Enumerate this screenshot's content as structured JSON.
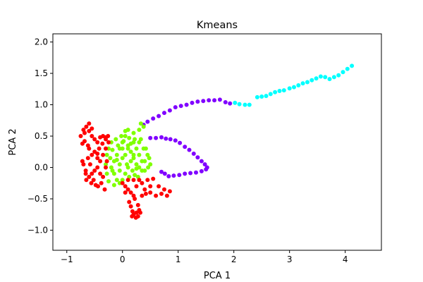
{
  "chart_data": {
    "type": "scatter",
    "title": "Kmeans",
    "xlabel": "PCA 1",
    "ylabel": "PCA 2",
    "xlim": [
      -1.25,
      4.65
    ],
    "ylim": [
      -1.32,
      2.13
    ],
    "xticks": [
      -1,
      0,
      1,
      2,
      3,
      4
    ],
    "yticks": [
      -1.0,
      -0.5,
      0.0,
      0.5,
      1.0,
      1.5,
      2.0
    ],
    "grid": false,
    "legend": "none",
    "series": [
      {
        "color": "#8000ff",
        "points": [
          [
            0.38,
            0.68
          ],
          [
            0.45,
            0.73
          ],
          [
            0.55,
            0.78
          ],
          [
            0.65,
            0.82
          ],
          [
            0.75,
            0.87
          ],
          [
            0.85,
            0.91
          ],
          [
            0.95,
            0.96
          ],
          [
            1.05,
            0.98
          ],
          [
            1.15,
            1.0
          ],
          [
            1.25,
            1.03
          ],
          [
            1.35,
            1.05
          ],
          [
            1.45,
            1.06
          ],
          [
            1.55,
            1.07
          ],
          [
            1.65,
            1.07
          ],
          [
            1.75,
            1.08
          ],
          [
            1.85,
            1.04
          ],
          [
            1.93,
            1.02
          ],
          [
            0.5,
            0.47
          ],
          [
            0.6,
            0.47
          ],
          [
            0.7,
            0.48
          ],
          [
            0.78,
            0.46
          ],
          [
            0.86,
            0.45
          ],
          [
            0.95,
            0.43
          ],
          [
            1.03,
            0.39
          ],
          [
            1.12,
            0.33
          ],
          [
            1.2,
            0.28
          ],
          [
            1.28,
            0.22
          ],
          [
            1.35,
            0.16
          ],
          [
            1.42,
            0.1
          ],
          [
            1.48,
            0.05
          ],
          [
            1.52,
            0.0
          ],
          [
            1.5,
            -0.03
          ],
          [
            1.42,
            -0.06
          ],
          [
            1.32,
            -0.08
          ],
          [
            1.22,
            -0.09
          ],
          [
            1.12,
            -0.1
          ],
          [
            1.02,
            -0.12
          ],
          [
            0.92,
            -0.13
          ],
          [
            0.83,
            -0.14
          ],
          [
            0.76,
            -0.1
          ],
          [
            0.7,
            -0.07
          ]
        ]
      },
      {
        "color": "#00ffff",
        "points": [
          [
            2.02,
            1.03
          ],
          [
            2.1,
            1.01
          ],
          [
            2.2,
            1.0
          ],
          [
            2.28,
            1.0
          ],
          [
            2.42,
            1.12
          ],
          [
            2.5,
            1.13
          ],
          [
            2.58,
            1.14
          ],
          [
            2.66,
            1.17
          ],
          [
            2.74,
            1.2
          ],
          [
            2.82,
            1.22
          ],
          [
            2.9,
            1.23
          ],
          [
            3.0,
            1.26
          ],
          [
            3.08,
            1.28
          ],
          [
            3.16,
            1.31
          ],
          [
            3.24,
            1.34
          ],
          [
            3.32,
            1.36
          ],
          [
            3.4,
            1.39
          ],
          [
            3.48,
            1.42
          ],
          [
            3.56,
            1.45
          ],
          [
            3.64,
            1.44
          ],
          [
            3.72,
            1.41
          ],
          [
            3.8,
            1.44
          ],
          [
            3.88,
            1.47
          ],
          [
            3.96,
            1.52
          ],
          [
            4.04,
            1.57
          ],
          [
            4.12,
            1.62
          ]
        ]
      },
      {
        "color": "#80ff00",
        "points": [
          [
            -0.15,
            0.1
          ],
          [
            -0.1,
            0.2
          ],
          [
            -0.05,
            0.3
          ],
          [
            0.0,
            0.4
          ],
          [
            0.05,
            0.5
          ],
          [
            0.1,
            0.35
          ],
          [
            0.15,
            0.25
          ],
          [
            0.2,
            0.15
          ],
          [
            0.25,
            0.05
          ],
          [
            0.3,
            0.0
          ],
          [
            0.35,
            -0.05
          ],
          [
            0.4,
            0.1
          ],
          [
            0.45,
            0.2
          ],
          [
            0.38,
            0.3
          ],
          [
            0.3,
            0.4
          ],
          [
            0.22,
            0.45
          ],
          [
            0.12,
            0.47
          ],
          [
            0.02,
            0.42
          ],
          [
            -0.08,
            0.35
          ],
          [
            -0.18,
            0.28
          ],
          [
            -0.22,
            0.15
          ],
          [
            -0.2,
            0.0
          ],
          [
            -0.15,
            -0.1
          ],
          [
            -0.1,
            -0.2
          ],
          [
            -0.05,
            -0.25
          ],
          [
            0.0,
            -0.2
          ],
          [
            0.05,
            -0.1
          ],
          [
            0.1,
            0.0
          ],
          [
            0.15,
            0.1
          ],
          [
            0.2,
            0.2
          ],
          [
            0.25,
            0.3
          ],
          [
            0.3,
            0.2
          ],
          [
            0.35,
            0.1
          ],
          [
            0.05,
            0.2
          ],
          [
            0.1,
            0.3
          ],
          [
            -0.05,
            0.05
          ],
          [
            0.0,
            0.15
          ],
          [
            0.18,
            -0.05
          ],
          [
            0.22,
            -0.12
          ],
          [
            0.28,
            -0.15
          ],
          [
            0.4,
            -0.05
          ],
          [
            0.46,
            0.0
          ],
          [
            0.5,
            0.05
          ],
          [
            0.3,
            0.6
          ],
          [
            0.38,
            0.65
          ],
          [
            0.33,
            0.7
          ],
          [
            0.2,
            0.55
          ],
          [
            0.1,
            0.6
          ],
          [
            0.05,
            0.58
          ],
          [
            -0.02,
            0.5
          ],
          [
            -0.12,
            0.45
          ],
          [
            -0.2,
            0.4
          ],
          [
            -0.25,
            0.3
          ],
          [
            -0.28,
            0.2
          ],
          [
            -0.3,
            0.05
          ],
          [
            -0.28,
            -0.1
          ],
          [
            -0.25,
            -0.22
          ],
          [
            -0.15,
            -0.28
          ],
          [
            -0.1,
            0.12
          ],
          [
            0.08,
            0.05
          ],
          [
            0.12,
            -0.15
          ],
          [
            0.2,
            0.4
          ],
          [
            0.25,
            -0.02
          ],
          [
            0.42,
            0.3
          ],
          [
            0.48,
            0.15
          ],
          [
            -0.18,
            -0.05
          ],
          [
            0.0,
            0.3
          ],
          [
            0.15,
            0.38
          ],
          [
            0.33,
            0.45
          ],
          [
            -0.05,
            -0.05
          ]
        ]
      },
      {
        "color": "#ff0000",
        "points": [
          [
            -0.75,
            0.5
          ],
          [
            -0.7,
            0.6
          ],
          [
            -0.65,
            0.65
          ],
          [
            -0.6,
            0.58
          ],
          [
            -0.55,
            0.5
          ],
          [
            -0.5,
            0.45
          ],
          [
            -0.45,
            0.4
          ],
          [
            -0.4,
            0.48
          ],
          [
            -0.35,
            0.5
          ],
          [
            -0.3,
            0.45
          ],
          [
            -0.25,
            0.4
          ],
          [
            -0.3,
            0.3
          ],
          [
            -0.35,
            0.2
          ],
          [
            -0.4,
            0.1
          ],
          [
            -0.45,
            0.0
          ],
          [
            -0.5,
            -0.05
          ],
          [
            -0.55,
            -0.1
          ],
          [
            -0.6,
            -0.15
          ],
          [
            -0.65,
            -0.2
          ],
          [
            -0.6,
            0.3
          ],
          [
            -0.55,
            0.2
          ],
          [
            -0.5,
            0.25
          ],
          [
            -0.45,
            0.15
          ],
          [
            -0.4,
            -0.1
          ],
          [
            -0.35,
            -0.15
          ],
          [
            -0.38,
            -0.25
          ],
          [
            -0.32,
            -0.35
          ],
          [
            -0.3,
            0.0
          ],
          [
            -0.28,
            0.1
          ],
          [
            -0.72,
            0.38
          ],
          [
            -0.68,
            0.42
          ],
          [
            -0.62,
            0.35
          ],
          [
            -0.58,
            0.05
          ],
          [
            -0.52,
            -0.2
          ],
          [
            -0.48,
            -0.28
          ],
          [
            -0.44,
            -0.3
          ],
          [
            -0.7,
            0.05
          ],
          [
            -0.66,
            -0.05
          ],
          [
            -0.62,
            0.15
          ],
          [
            -0.42,
            0.3
          ],
          [
            -0.36,
            0.38
          ],
          [
            0.0,
            -0.25
          ],
          [
            0.05,
            -0.3
          ],
          [
            0.1,
            -0.35
          ],
          [
            0.15,
            -0.4
          ],
          [
            0.2,
            -0.45
          ],
          [
            0.25,
            -0.3
          ],
          [
            0.3,
            -0.2
          ],
          [
            0.35,
            -0.25
          ],
          [
            0.4,
            -0.35
          ],
          [
            0.5,
            -0.4
          ],
          [
            0.6,
            -0.45
          ],
          [
            0.7,
            -0.42
          ],
          [
            0.8,
            -0.45
          ],
          [
            0.85,
            -0.38
          ],
          [
            0.12,
            -0.55
          ],
          [
            0.15,
            -0.62
          ],
          [
            0.18,
            -0.7
          ],
          [
            0.2,
            -0.75
          ],
          [
            0.25,
            -0.72
          ],
          [
            0.3,
            -0.68
          ],
          [
            0.28,
            -0.6
          ],
          [
            0.22,
            -0.5
          ],
          [
            0.1,
            -0.2
          ],
          [
            0.2,
            -0.2
          ],
          [
            0.45,
            -0.2
          ],
          [
            0.55,
            -0.18
          ],
          [
            0.5,
            -0.3
          ],
          [
            0.75,
            -0.35
          ],
          [
            0.17,
            -0.78
          ],
          [
            0.24,
            -0.8
          ],
          [
            0.28,
            -0.78
          ],
          [
            0.32,
            -0.72
          ],
          [
            -0.68,
            0.55
          ],
          [
            -0.6,
            0.7
          ],
          [
            -0.55,
            0.62
          ],
          [
            -0.72,
            0.1
          ],
          [
            -0.66,
            -0.1
          ],
          [
            -0.56,
            -0.25
          ],
          [
            -0.3,
            0.48
          ],
          [
            -0.26,
            0.5
          ],
          [
            -0.45,
            0.22
          ],
          [
            0.35,
            -0.45
          ],
          [
            0.42,
            -0.42
          ],
          [
            0.05,
            -0.4
          ],
          [
            0.65,
            -0.3
          ]
        ]
      }
    ]
  }
}
